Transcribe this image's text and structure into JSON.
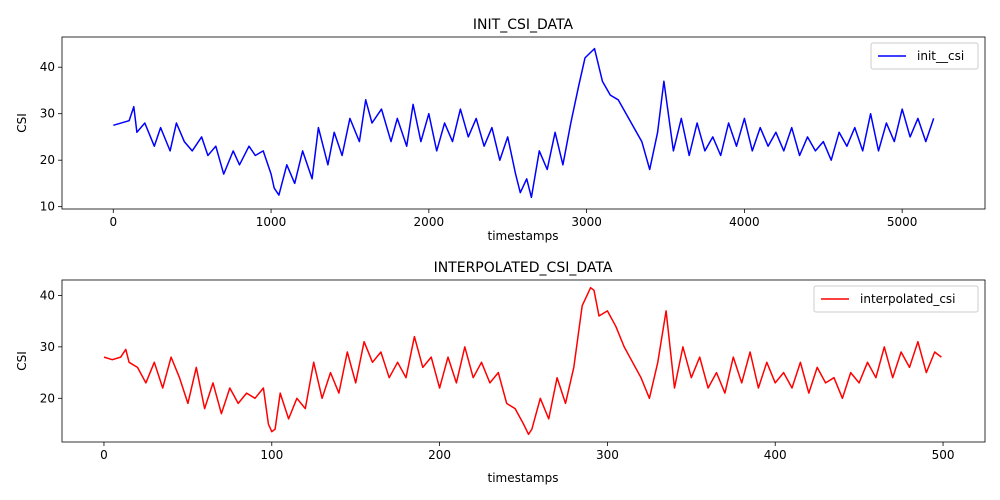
{
  "chart_data": [
    {
      "type": "line",
      "title": "INIT_CSI_DATA",
      "xlabel": "timestamps",
      "ylabel": "CSI",
      "xlim": [
        -325,
        5525
      ],
      "ylim": [
        9.5,
        46.5
      ],
      "xticks": [
        0,
        1000,
        2000,
        3000,
        4000,
        5000
      ],
      "yticks": [
        10,
        20,
        30,
        40
      ],
      "legend": "top-right",
      "grid": false,
      "series": [
        {
          "name": "init__csi",
          "color": "#0000ff",
          "x": [
            0,
            100,
            130,
            150,
            200,
            260,
            300,
            360,
            400,
            450,
            500,
            560,
            600,
            650,
            700,
            760,
            800,
            860,
            900,
            950,
            1000,
            1020,
            1050,
            1100,
            1150,
            1200,
            1260,
            1300,
            1360,
            1400,
            1450,
            1500,
            1560,
            1600,
            1640,
            1700,
            1760,
            1800,
            1860,
            1900,
            1950,
            2000,
            2050,
            2100,
            2150,
            2200,
            2250,
            2300,
            2350,
            2400,
            2450,
            2500,
            2550,
            2580,
            2620,
            2650,
            2700,
            2750,
            2800,
            2850,
            2900,
            2950,
            2990,
            3050,
            3100,
            3150,
            3200,
            3250,
            3300,
            3350,
            3400,
            3450,
            3490,
            3550,
            3600,
            3650,
            3700,
            3750,
            3800,
            3850,
            3900,
            3950,
            4000,
            4050,
            4100,
            4150,
            4200,
            4250,
            4300,
            4350,
            4400,
            4450,
            4500,
            4550,
            4600,
            4650,
            4700,
            4750,
            4800,
            4850,
            4900,
            4950,
            5000,
            5050,
            5100,
            5150,
            5200
          ],
          "y": [
            27.5,
            28.5,
            31.5,
            26,
            28,
            23,
            27,
            22,
            28,
            24,
            22,
            25,
            21,
            23,
            17,
            22,
            19,
            23,
            21,
            22,
            17,
            14,
            12.5,
            19,
            15,
            22,
            16,
            27,
            19,
            26,
            21,
            29,
            24,
            33,
            28,
            31,
            24,
            29,
            23,
            32,
            24,
            30,
            22,
            28,
            24,
            31,
            25,
            29,
            23,
            27,
            20,
            25,
            17,
            13,
            16,
            12,
            22,
            18,
            26,
            19,
            28,
            36,
            42,
            44,
            37,
            34,
            33,
            30,
            27,
            24,
            18,
            26,
            37,
            22,
            29,
            21,
            28,
            22,
            25,
            21,
            28,
            23,
            29,
            22,
            27,
            23,
            26,
            22,
            27,
            21,
            25,
            22,
            24,
            20,
            26,
            23,
            27,
            22,
            30,
            22,
            28,
            24,
            31,
            25,
            29,
            24,
            29
          ]
        }
      ]
    },
    {
      "type": "line",
      "title": "INTERPOLATED_CSI_DATA",
      "xlabel": "timestamps",
      "ylabel": "CSI",
      "xlim": [
        -25,
        525
      ],
      "ylim": [
        11.5,
        43
      ],
      "xticks": [
        0,
        100,
        200,
        300,
        400,
        500
      ],
      "yticks": [
        20,
        30,
        40
      ],
      "legend": "top-right",
      "grid": false,
      "series": [
        {
          "name": "interpolated_csi",
          "color": "#ff0000",
          "x": [
            0,
            5,
            10,
            13,
            15,
            20,
            25,
            30,
            35,
            40,
            45,
            50,
            55,
            60,
            65,
            70,
            75,
            80,
            85,
            90,
            95,
            98,
            100,
            102,
            105,
            110,
            115,
            120,
            125,
            130,
            135,
            140,
            145,
            150,
            155,
            160,
            165,
            170,
            175,
            180,
            185,
            190,
            195,
            200,
            205,
            210,
            215,
            220,
            225,
            230,
            235,
            240,
            245,
            250,
            253,
            255,
            260,
            265,
            270,
            275,
            280,
            285,
            290,
            292,
            295,
            300,
            305,
            310,
            315,
            320,
            325,
            330,
            335,
            340,
            345,
            350,
            355,
            360,
            365,
            370,
            375,
            380,
            385,
            390,
            395,
            400,
            405,
            410,
            415,
            420,
            425,
            430,
            435,
            440,
            445,
            450,
            455,
            460,
            465,
            470,
            475,
            480,
            485,
            490,
            495,
            499
          ],
          "y": [
            28,
            27.5,
            28,
            29.5,
            27,
            26,
            23,
            27,
            22,
            28,
            24,
            19,
            26,
            18,
            23,
            17,
            22,
            19,
            21,
            20,
            22,
            15,
            13.5,
            14,
            21,
            16,
            20,
            18,
            27,
            20,
            25,
            21,
            29,
            23,
            31,
            27,
            29,
            24,
            27,
            24,
            32,
            26,
            28,
            22,
            28,
            23,
            30,
            24,
            27,
            23,
            25,
            19,
            18,
            15,
            13,
            14,
            20,
            16,
            24,
            19,
            26,
            38,
            41.5,
            41,
            36,
            37,
            34,
            30,
            27,
            24,
            20,
            27,
            37,
            22,
            30,
            24,
            28,
            22,
            25,
            21,
            28,
            23,
            29,
            22,
            27,
            23,
            25,
            22,
            27,
            21,
            26,
            23,
            24,
            20,
            25,
            23,
            27,
            24,
            30,
            24,
            29,
            26,
            31,
            25,
            29,
            28
          ]
        }
      ]
    }
  ]
}
